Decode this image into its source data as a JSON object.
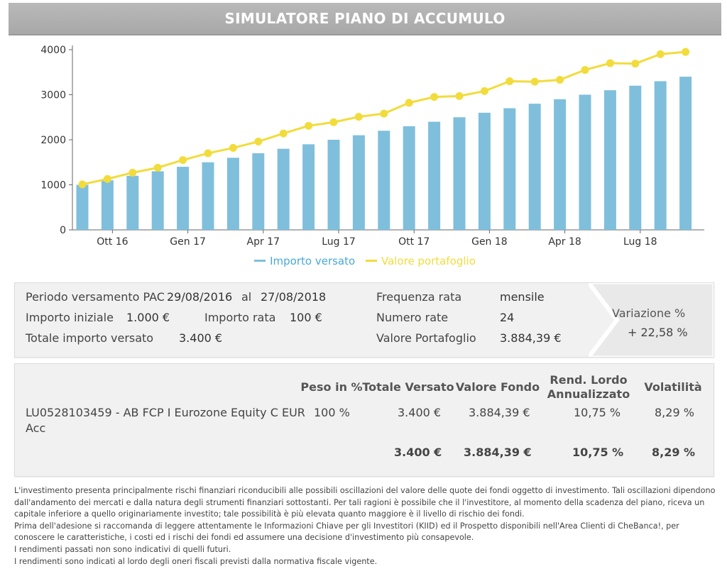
{
  "title": "SIMULATORE PIANO DI ACCUMULO",
  "colors": {
    "bar": "#7fbfdc",
    "line": "#f2dc3c",
    "legend_text": "#4aa8d8"
  },
  "chart_data": {
    "type": "bar",
    "x_tick_labels": [
      "Ott 16",
      "Gen 17",
      "Apr 17",
      "Lug 17",
      "Ott 17",
      "Gen 18",
      "Apr 18",
      "Lug 18"
    ],
    "ylim": [
      0,
      4000
    ],
    "y_ticks": [
      0,
      1000,
      2000,
      3000,
      4000
    ],
    "grid": false,
    "legend_position": "bottom",
    "series": [
      {
        "name": "Importo versato",
        "type": "bar",
        "values": [
          1000,
          1100,
          1200,
          1300,
          1400,
          1500,
          1600,
          1700,
          1800,
          1900,
          2000,
          2100,
          2200,
          2300,
          2400,
          2500,
          2600,
          2700,
          2800,
          2900,
          3000,
          3100,
          3200,
          3300,
          3400
        ]
      },
      {
        "name": "Valore portafoglio",
        "type": "line",
        "values": [
          1010,
          1130,
          1270,
          1380,
          1550,
          1700,
          1820,
          1960,
          2140,
          2310,
          2390,
          2510,
          2580,
          2820,
          2950,
          2970,
          3080,
          3300,
          3290,
          3330,
          3550,
          3700,
          3690,
          3900,
          3950
        ]
      }
    ]
  },
  "summary": {
    "periodo_label": "Periodo versamento PAC",
    "periodo_start": "29/08/2016",
    "periodo_al": "al",
    "periodo_end": "27/08/2018",
    "importo_iniziale_label": "Importo iniziale",
    "importo_iniziale_value": "1.000 €",
    "importo_rata_label": "Importo rata",
    "importo_rata_value": "100 €",
    "totale_label": "Totale importo versato",
    "totale_value": "3.400 €",
    "frequenza_label": "Frequenza rata",
    "frequenza_value": "mensile",
    "numero_label": "Numero rate",
    "numero_value": "24",
    "valore_label": "Valore Portafoglio",
    "valore_value": "3.884,39 €",
    "variazione_label": "Variazione %",
    "variazione_value": "+ 22,58 %"
  },
  "fund_table": {
    "headers": {
      "peso": "Peso in %",
      "totale": "Totale Versato",
      "valore": "Valore Fondo",
      "rend_line1": "Rend. Lordo",
      "rend_line2": "Annualizzato",
      "volatilita": "Volatilità"
    },
    "row": {
      "name_line1": "LU0528103459 - AB FCP I Eurozone Equity C EUR",
      "name_line2": "Acc",
      "peso": "100 %",
      "totale": "3.400 €",
      "valore": "3.884,39 €",
      "rend": "10,75 %",
      "volatilita": "8,29 %"
    },
    "totals": {
      "totale": "3.400 €",
      "valore": "3.884,39 €",
      "rend": "10,75 %",
      "volatilita": "8,29 %"
    }
  },
  "disclaimer": [
    "L'investimento presenta principalmente rischi finanziari riconducibili alle possibili oscillazioni del valore delle quote dei fondi oggetto di investimento. Tali oscillazioni dipendono dall'andamento dei mercati e dalla natura degli strumenti finanziari sottostanti. Per tali ragioni è possibile che il l'investitore, al momento della scadenza del piano, riceva un capitale inferiore a quello originariamente investito; tale possibilità è più elevata quanto maggiore è il livello di rischio dei fondi.",
    "Prima dell'adesione si raccomanda di leggere attentamente le Informazioni Chiave per gli Investitori (KIID) ed il Prospetto disponibili nell'Area Clienti di CheBanca!, per conoscere le caratteristiche, i costi ed i rischi dei fondi ed assumere una decisione d'investimento più consapevole.",
    "I rendimenti passati non sono indicativi di quelli futuri.",
    "I rendimenti sono indicati al lordo degli oneri fiscali previsti dalla normativa fiscale vigente."
  ]
}
